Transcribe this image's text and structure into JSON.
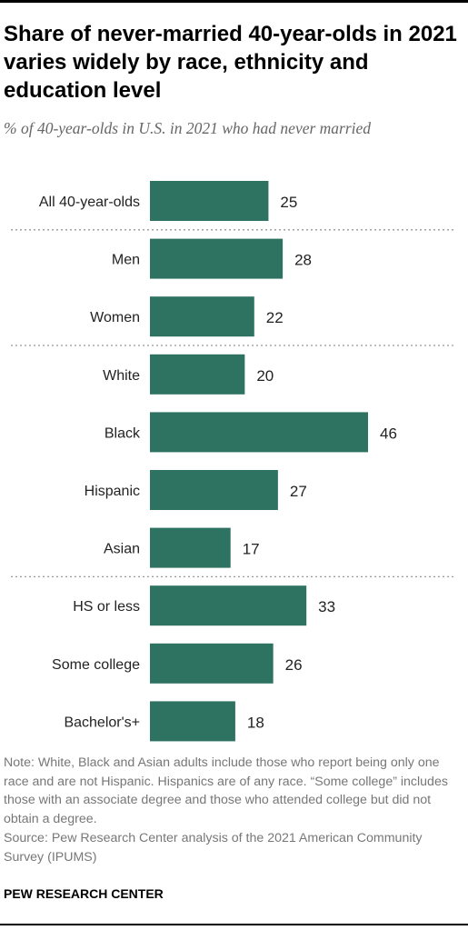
{
  "title": "Share of never-married 40-year-olds in 2021 varies widely by race, ethnicity and education level",
  "subtitle": "% of 40-year-olds in U.S. in 2021 who had never married",
  "notes": [
    "Note: White, Black and Asian adults include those who report being only one race and are not Hispanic. Hispanics are of any race. “Some college” includes those with an associate degree and those who attended college but did not obtain a degree.",
    "Source: Pew Research Center analysis of the 2021 American Community Survey (IPUMS)"
  ],
  "footer": "PEW RESEARCH CENTER",
  "chart_data": {
    "type": "bar",
    "orientation": "horizontal",
    "categories": [
      "All 40-year-olds",
      "Men",
      "Women",
      "White",
      "Black",
      "Hispanic",
      "Asian",
      "HS or less",
      "Some college",
      "Bachelor's+"
    ],
    "values": [
      25,
      28,
      22,
      20,
      46,
      27,
      17,
      33,
      26,
      18
    ],
    "groups": [
      [
        "All 40-year-olds"
      ],
      [
        "Men",
        "Women"
      ],
      [
        "White",
        "Black",
        "Hispanic",
        "Asian"
      ],
      [
        "HS or less",
        "Some college",
        "Bachelor's+"
      ]
    ],
    "value_labels": [
      "25",
      "28",
      "22",
      "20",
      "46",
      "27",
      "17",
      "33",
      "26",
      "18"
    ],
    "xlim": [
      0,
      46
    ],
    "grid": false,
    "bar_color": "#2e7262",
    "separator_color": "#999999",
    "title": "",
    "xlabel": "",
    "ylabel": ""
  }
}
